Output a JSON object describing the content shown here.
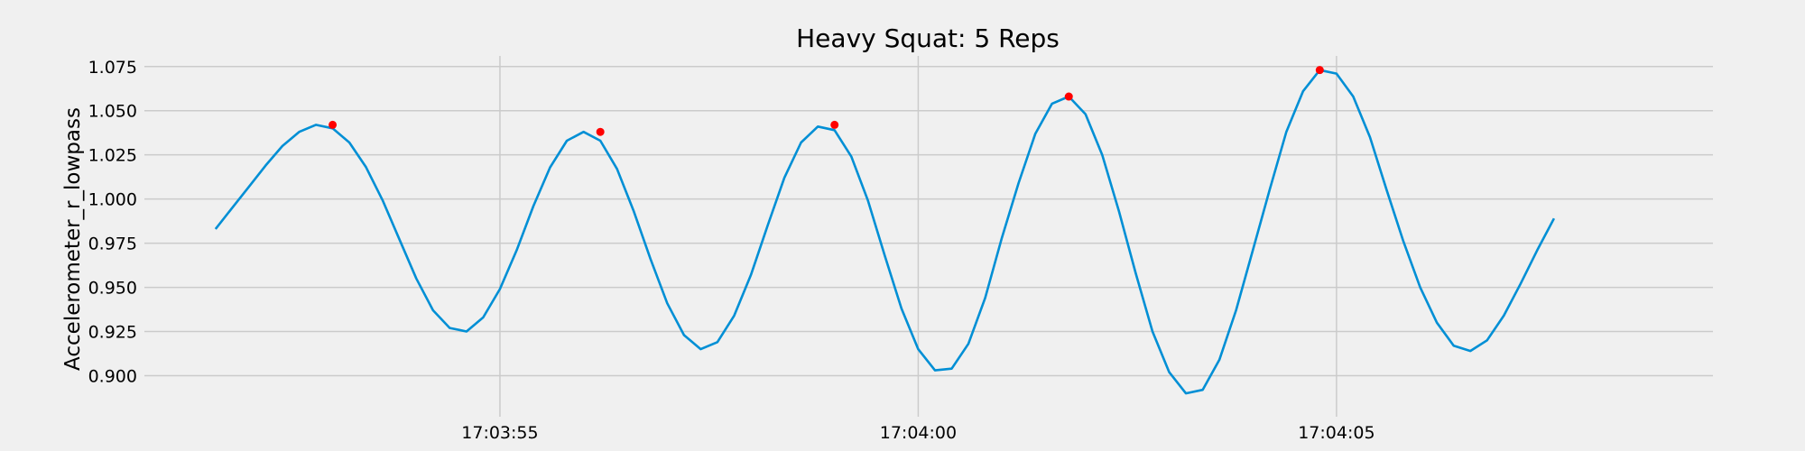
{
  "chart_data": {
    "type": "line",
    "title": "Heavy Squat: 5 Reps",
    "xlabel": "",
    "ylabel": "Accelerometer_r_lowpass",
    "x_range": [
      "17:03:50.750",
      "17:04:09.500"
    ],
    "ylim": [
      0.888,
      1.081
    ],
    "x_ticks": [
      "17:03:55",
      "17:04:00",
      "17:04:05"
    ],
    "y_ticks": [
      0.9,
      0.925,
      0.95,
      0.975,
      1.0,
      1.025,
      1.05,
      1.075
    ],
    "y_tick_labels": [
      "0.900",
      "0.925",
      "0.950",
      "0.975",
      "1.000",
      "1.025",
      "1.050",
      "1.075"
    ],
    "grid": true,
    "legend": "none",
    "series": [
      {
        "color": "#008fd5",
        "x": [
          "17:03:51.600",
          "17:03:51.800",
          "17:03:52.000",
          "17:03:52.200",
          "17:03:52.400",
          "17:03:52.600",
          "17:03:52.800",
          "17:03:53.000",
          "17:03:53.200",
          "17:03:53.400",
          "17:03:53.600",
          "17:03:53.800",
          "17:03:54.000",
          "17:03:54.200",
          "17:03:54.400",
          "17:03:54.600",
          "17:03:54.800",
          "17:03:55.000",
          "17:03:55.200",
          "17:03:55.400",
          "17:03:55.600",
          "17:03:55.800",
          "17:03:56.000",
          "17:03:56.200",
          "17:03:56.400",
          "17:03:56.600",
          "17:03:56.800",
          "17:03:57.000",
          "17:03:57.200",
          "17:03:57.400",
          "17:03:57.600",
          "17:03:57.800",
          "17:03:58.000",
          "17:03:58.200",
          "17:03:58.400",
          "17:03:58.600",
          "17:03:58.800",
          "17:03:59.000",
          "17:03:59.200",
          "17:03:59.400",
          "17:03:59.600",
          "17:03:59.800",
          "17:04:00.000",
          "17:04:00.200",
          "17:04:00.400",
          "17:04:00.600",
          "17:04:00.800",
          "17:04:01.000",
          "17:04:01.200",
          "17:04:01.400",
          "17:04:01.600",
          "17:04:01.800",
          "17:04:02.000",
          "17:04:02.200",
          "17:04:02.400",
          "17:04:02.600",
          "17:04:02.800",
          "17:04:03.000",
          "17:04:03.200",
          "17:04:03.400",
          "17:04:03.600",
          "17:04:03.800",
          "17:04:04.000",
          "17:04:04.200",
          "17:04:04.400",
          "17:04:04.600",
          "17:04:04.800",
          "17:04:05.000",
          "17:04:05.200",
          "17:04:05.400",
          "17:04:05.600",
          "17:04:05.800",
          "17:04:06.000",
          "17:04:06.200",
          "17:04:06.400",
          "17:04:06.600",
          "17:04:06.800",
          "17:04:07.000",
          "17:04:07.200",
          "17:04:07.400",
          "17:04:07.600"
        ],
        "y": [
          0.983,
          0.995,
          1.007,
          1.019,
          1.03,
          1.038,
          1.042,
          1.04,
          1.032,
          1.018,
          0.999,
          0.977,
          0.955,
          0.937,
          0.927,
          0.925,
          0.933,
          0.949,
          0.971,
          0.996,
          1.018,
          1.033,
          1.038,
          1.033,
          1.017,
          0.993,
          0.966,
          0.941,
          0.923,
          0.915,
          0.919,
          0.934,
          0.957,
          0.985,
          1.012,
          1.032,
          1.041,
          1.039,
          1.024,
          0.999,
          0.968,
          0.938,
          0.915,
          0.903,
          0.904,
          0.918,
          0.944,
          0.978,
          1.009,
          1.037,
          1.054,
          1.058,
          1.048,
          1.025,
          0.993,
          0.958,
          0.925,
          0.902,
          0.89,
          0.892,
          0.909,
          0.937,
          0.971,
          1.005,
          1.038,
          1.061,
          1.073,
          1.071,
          1.058,
          1.035,
          1.005,
          0.976,
          0.95,
          0.93,
          0.917,
          0.914,
          0.92,
          0.934,
          0.952,
          0.971,
          0.989
        ]
      }
    ],
    "peaks": {
      "color": "#ff0000",
      "x": [
        "17:03:53.000",
        "17:03:56.200",
        "17:03:59.000",
        "17:04:01.800",
        "17:04:04.800"
      ],
      "y": [
        1.042,
        1.038,
        1.042,
        1.058,
        1.073
      ]
    }
  }
}
